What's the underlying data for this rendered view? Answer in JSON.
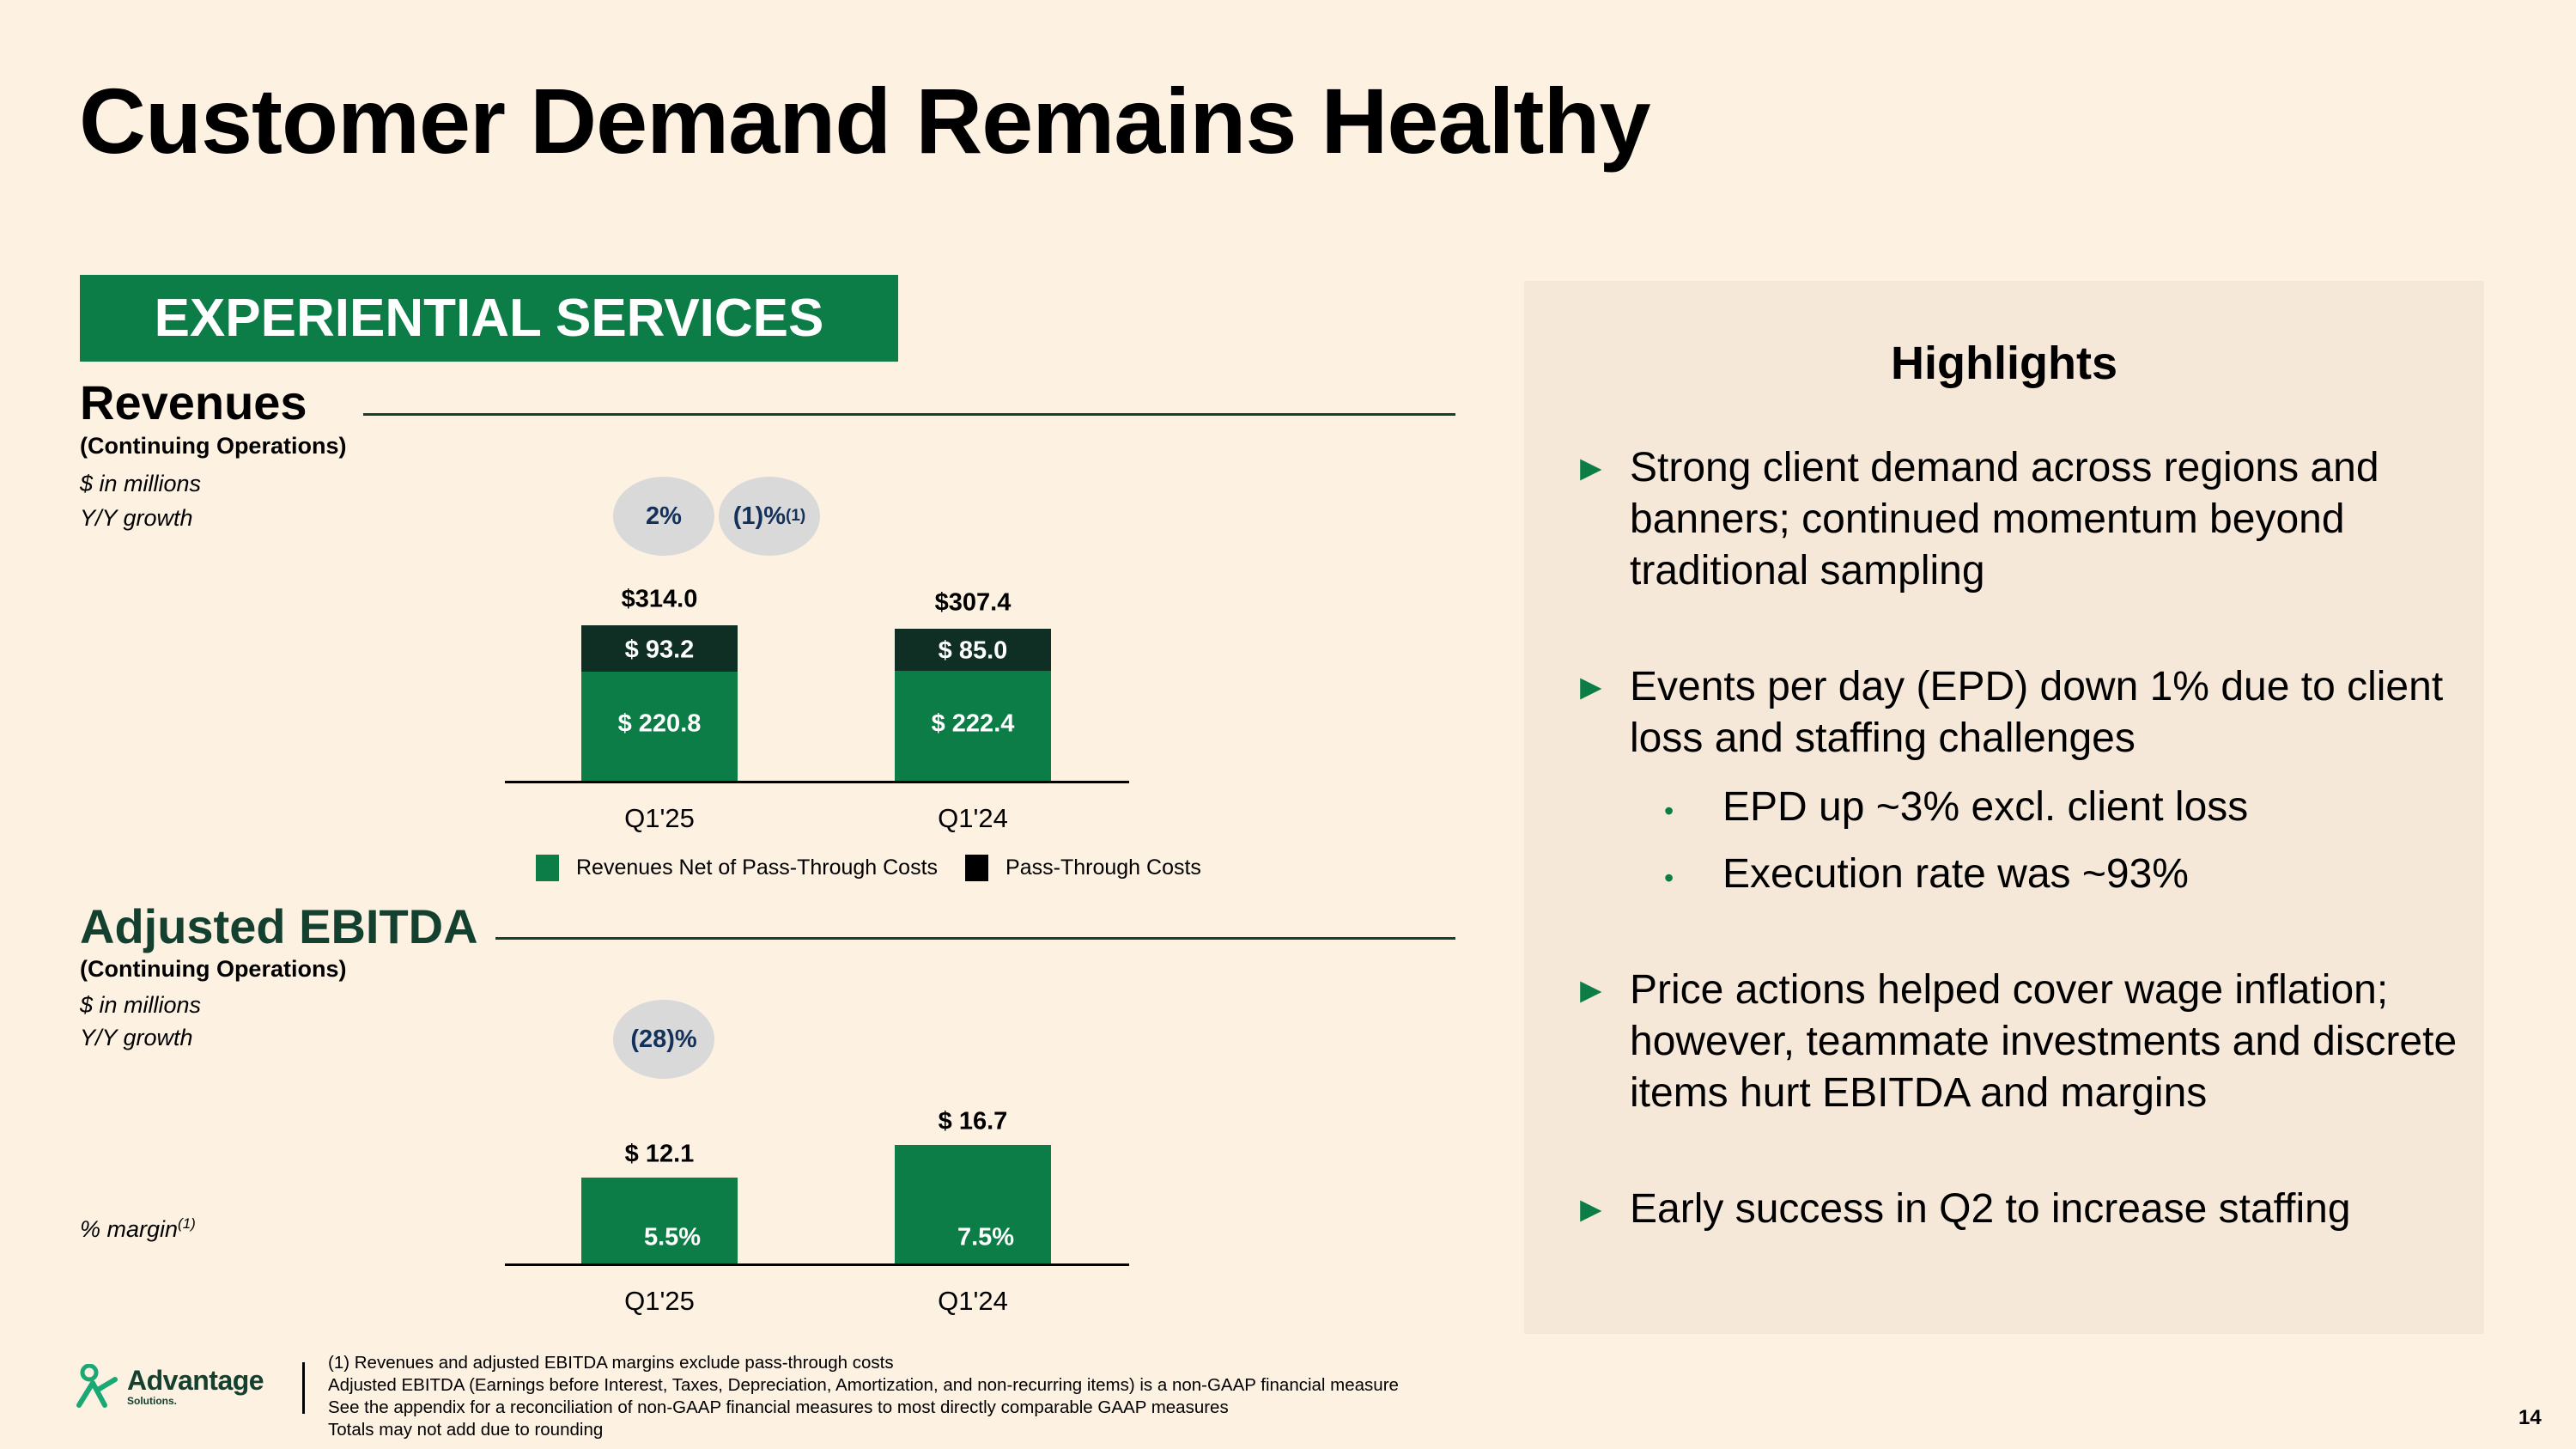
{
  "page": {
    "title": "Customer Demand Remains Healthy",
    "banner": "EXPERIENTIAL SERVICES",
    "page_number": "14"
  },
  "revenues": {
    "title": "Revenues",
    "subtitle": "(Continuing Operations)",
    "units": "$ in millions",
    "growth_label": "Y/Y growth",
    "growth_pills": [
      {
        "text": "2%",
        "sup": ""
      },
      {
        "text": "(1)%",
        "sup": "(1)"
      }
    ]
  },
  "ebitda": {
    "title": "Adjusted EBITDA",
    "subtitle": "(Continuing Operations)",
    "units": "$ in millions",
    "growth_label": "Y/Y growth",
    "growth_pill": "(28)%",
    "margin_label": "% margin",
    "margin_sup": "(1)"
  },
  "legend": {
    "net": "Revenues Net of Pass-Through Costs",
    "pass": "Pass-Through Costs"
  },
  "chart_data": [
    {
      "type": "bar",
      "stacked": true,
      "title": "Revenues",
      "categories": [
        "Q1'25",
        "Q1'24"
      ],
      "series": [
        {
          "name": "Revenues Net of Pass-Through Costs",
          "values": [
            220.8,
            222.4
          ],
          "labels": [
            "$ 220.8",
            "$ 222.4"
          ],
          "color": "#0c7d46"
        },
        {
          "name": "Pass-Through Costs",
          "values": [
            93.2,
            85.0
          ],
          "labels": [
            "$ 93.2",
            "$ 85.0"
          ],
          "color": "#0f2f25"
        }
      ],
      "totals": [
        314.0,
        307.4
      ],
      "total_labels": [
        "$314.0",
        "$307.4"
      ],
      "ylim": [
        0,
        314.0
      ]
    },
    {
      "type": "bar",
      "title": "Adjusted EBITDA",
      "categories": [
        "Q1'25",
        "Q1'24"
      ],
      "values": [
        12.1,
        16.7
      ],
      "value_labels": [
        "$ 12.1",
        "$ 16.7"
      ],
      "margins": [
        "5.5%",
        "7.5%"
      ],
      "color": "#0c7d46",
      "ylim": [
        0,
        16.7
      ]
    }
  ],
  "highlights": {
    "title": "Highlights",
    "bullets": [
      "Strong client demand across regions and banners; continued momentum beyond traditional sampling",
      "Events per day (EPD) down 1% due to client loss and staffing challenges",
      "Price actions helped cover wage inflation; however, teammate investments and discrete items hurt EBITDA and margins",
      "Early success in Q2 to increase staffing"
    ],
    "sub_bullets": [
      "EPD up ~3% excl. client loss",
      "Execution rate was ~93%"
    ]
  },
  "logo": {
    "name": "Advantage",
    "tagline": "Solutions."
  },
  "footnotes": [
    "(1)  Revenues and adjusted EBITDA margins exclude pass-through costs",
    "Adjusted EBITDA (Earnings before Interest, Taxes, Depreciation, Amortization, and non-recurring items) is a non-GAAP financial measure",
    "See the appendix for a reconciliation of non-GAAP financial measures to most directly comparable GAAP measures",
    "Totals may not add due to rounding"
  ]
}
